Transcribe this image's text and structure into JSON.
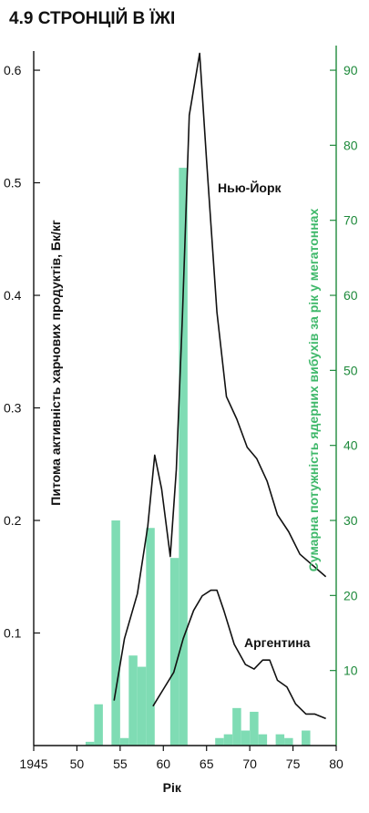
{
  "title": "4.9 СТРОНЦІЙ В ЇЖІ",
  "chart_data": {
    "type": "bar+line",
    "xlabel": "Рік",
    "ylabel_left": "Питома активність харчових продуктів, Бк/кг",
    "ylabel_right": "Сумарна потужність ядерних вибухів за рік у мегатоннах",
    "x_range": [
      1945,
      1980
    ],
    "ylim_left": [
      0,
      0.63
    ],
    "ylim_right": [
      0,
      94.5
    ],
    "x_ticks": [
      {
        "value": 1945,
        "label": "1945"
      },
      {
        "value": 1950,
        "label": "50"
      },
      {
        "value": 1955,
        "label": "55"
      },
      {
        "value": 1960,
        "label": "60"
      },
      {
        "value": 1965,
        "label": "65"
      },
      {
        "value": 1970,
        "label": "70"
      },
      {
        "value": 1975,
        "label": "75"
      },
      {
        "value": 1980,
        "label": "80"
      }
    ],
    "y_ticks_left": [
      {
        "value": 0.1,
        "label": "0.1"
      },
      {
        "value": 0.2,
        "label": "0.2"
      },
      {
        "value": 0.3,
        "label": "0.3"
      },
      {
        "value": 0.4,
        "label": "0.4"
      },
      {
        "value": 0.5,
        "label": "0.5"
      },
      {
        "value": 0.6,
        "label": "0.6"
      }
    ],
    "y_ticks_right": [
      {
        "value": 10,
        "label": "10"
      },
      {
        "value": 20,
        "label": "20"
      },
      {
        "value": 30,
        "label": "30"
      },
      {
        "value": 40,
        "label": "40"
      },
      {
        "value": 50,
        "label": "50"
      },
      {
        "value": 60,
        "label": "60"
      },
      {
        "value": 70,
        "label": "70"
      },
      {
        "value": 80,
        "label": "80"
      },
      {
        "value": 90,
        "label": "90"
      }
    ],
    "bars": {
      "axis": "right",
      "color": "#7fdcb4",
      "points": [
        {
          "x": 1951.5,
          "y": 0.5
        },
        {
          "x": 1952.5,
          "y": 5.5
        },
        {
          "x": 1954.5,
          "y": 30
        },
        {
          "x": 1955.5,
          "y": 1
        },
        {
          "x": 1956.5,
          "y": 12
        },
        {
          "x": 1957.5,
          "y": 10.5
        },
        {
          "x": 1958.5,
          "y": 29
        },
        {
          "x": 1961.3,
          "y": 25
        },
        {
          "x": 1962.3,
          "y": 77
        },
        {
          "x": 1966.5,
          "y": 1
        },
        {
          "x": 1967.5,
          "y": 1.5
        },
        {
          "x": 1968.5,
          "y": 5
        },
        {
          "x": 1969.5,
          "y": 2
        },
        {
          "x": 1970.5,
          "y": 4.5
        },
        {
          "x": 1971.5,
          "y": 1.5
        },
        {
          "x": 1973.5,
          "y": 1.5
        },
        {
          "x": 1974.5,
          "y": 1
        },
        {
          "x": 1976.5,
          "y": 2
        }
      ]
    },
    "series": [
      {
        "name": "Нью-Йорк",
        "axis": "left",
        "color": "#111111",
        "points": [
          [
            1954.3,
            0.04
          ],
          [
            1955.5,
            0.095
          ],
          [
            1957,
            0.135
          ],
          [
            1958.2,
            0.195
          ],
          [
            1959,
            0.258
          ],
          [
            1959.8,
            0.228
          ],
          [
            1960.8,
            0.168
          ],
          [
            1961.5,
            0.245
          ],
          [
            1962.2,
            0.38
          ],
          [
            1963,
            0.56
          ],
          [
            1964.2,
            0.615
          ],
          [
            1965,
            0.52
          ],
          [
            1966.2,
            0.385
          ],
          [
            1967.3,
            0.31
          ],
          [
            1968.5,
            0.29
          ],
          [
            1969.7,
            0.265
          ],
          [
            1970.8,
            0.255
          ],
          [
            1972,
            0.235
          ],
          [
            1973.2,
            0.205
          ],
          [
            1974.5,
            0.19
          ],
          [
            1975.8,
            0.17
          ],
          [
            1977,
            0.162
          ],
          [
            1978.8,
            0.15
          ]
        ]
      },
      {
        "name": "Аргентина",
        "axis": "left",
        "color": "#111111",
        "points": [
          [
            1958.8,
            0.035
          ],
          [
            1960,
            0.05
          ],
          [
            1961.2,
            0.065
          ],
          [
            1962.3,
            0.095
          ],
          [
            1963.5,
            0.12
          ],
          [
            1964.5,
            0.133
          ],
          [
            1965.5,
            0.138
          ],
          [
            1966.2,
            0.138
          ],
          [
            1967,
            0.12
          ],
          [
            1968.2,
            0.09
          ],
          [
            1969.5,
            0.072
          ],
          [
            1970.5,
            0.068
          ],
          [
            1971.5,
            0.076
          ],
          [
            1972.3,
            0.076
          ],
          [
            1973.2,
            0.058
          ],
          [
            1974.3,
            0.052
          ],
          [
            1975.3,
            0.037
          ],
          [
            1976.5,
            0.028
          ],
          [
            1977.5,
            0.028
          ],
          [
            1978.8,
            0.024
          ]
        ]
      }
    ]
  }
}
